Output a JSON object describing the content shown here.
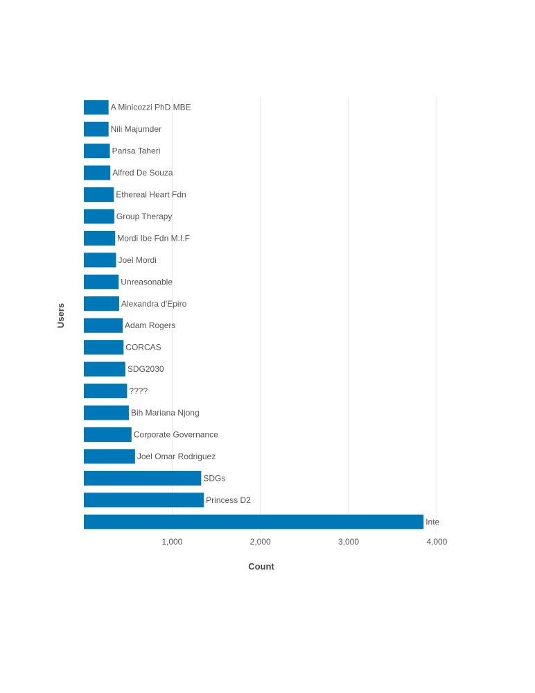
{
  "chart_data": {
    "type": "bar",
    "orientation": "horizontal",
    "title": "",
    "xlabel": "Count",
    "ylabel": "Users",
    "xlim": [
      0,
      4000
    ],
    "xticks": [
      1000,
      2000,
      3000,
      4000
    ],
    "xtick_labels": [
      "1,000",
      "2,000",
      "3,000",
      "4,000"
    ],
    "grid": true,
    "legend": "none",
    "bar_color": "#0077b6",
    "categories": [
      "A Minicozzi PhD MBE",
      "Nili Majumder",
      "Parisa Taheri",
      "Alfred De Souza",
      "Ethereal Heart Fdn",
      "Group Therapy",
      "Mordi Ibe Fdn M.I.F",
      "Joel Mordi",
      "Unreasonable",
      "Alexandra d'Epiro",
      "Adam Rogers",
      "CORCAS",
      "SDG2030",
      "????",
      "Bih Mariana Njong",
      "Corporate Governance",
      "Joel Omar Rodriguez",
      "SDGs",
      "Princess D2",
      "Inte"
    ],
    "values": [
      280,
      280,
      295,
      300,
      340,
      345,
      355,
      365,
      395,
      400,
      440,
      450,
      470,
      490,
      510,
      540,
      580,
      1330,
      1360,
      3850
    ]
  }
}
